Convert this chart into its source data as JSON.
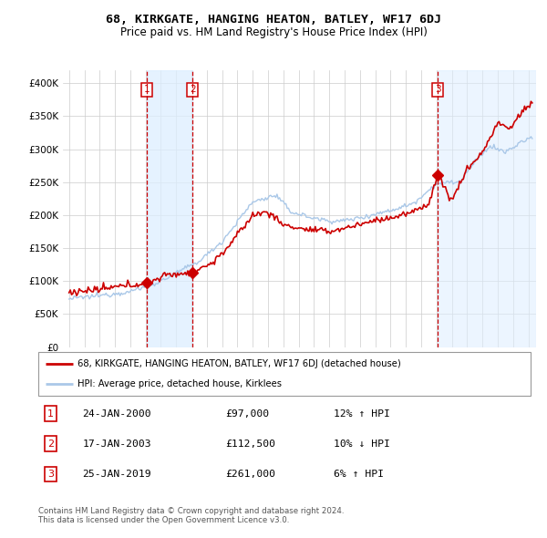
{
  "title": "68, KIRKGATE, HANGING HEATON, BATLEY, WF17 6DJ",
  "subtitle": "Price paid vs. HM Land Registry's House Price Index (HPI)",
  "sale_dates_num": [
    2000.07,
    2003.07,
    2019.07
  ],
  "sale_prices": [
    97000,
    112500,
    261000
  ],
  "sale_labels": [
    "1",
    "2",
    "3"
  ],
  "sale_annotations": [
    {
      "label": "1",
      "date": "24-JAN-2000",
      "price": "£97,000",
      "hpi": "12% ↑ HPI"
    },
    {
      "label": "2",
      "date": "17-JAN-2003",
      "price": "£112,500",
      "hpi": "10% ↓ HPI"
    },
    {
      "label": "3",
      "date": "25-JAN-2019",
      "price": "£261,000",
      "hpi": "6% ↑ HPI"
    }
  ],
  "legend_line1": "68, KIRKGATE, HANGING HEATON, BATLEY, WF17 6DJ (detached house)",
  "legend_line2": "HPI: Average price, detached house, Kirklees",
  "footer": "Contains HM Land Registry data © Crown copyright and database right 2024.\nThis data is licensed under the Open Government Licence v3.0.",
  "property_color": "#cc0000",
  "hpi_color": "#aac8e8",
  "vline_color": "#cc0000",
  "shade_color": "#ddeeff",
  "marker_color": "#cc0000",
  "ylim_max": 420000,
  "xlim_start": 1994.6,
  "xlim_end": 2025.5,
  "yticks": [
    0,
    50000,
    100000,
    150000,
    200000,
    250000,
    300000,
    350000,
    400000
  ],
  "ylabels": [
    "£0",
    "£50K",
    "£100K",
    "£150K",
    "£200K",
    "£250K",
    "£300K",
    "£350K",
    "£400K"
  ]
}
